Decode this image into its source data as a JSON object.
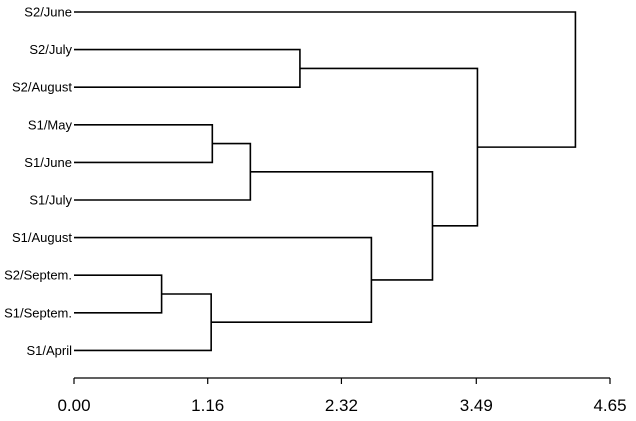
{
  "chart_data": {
    "type": "dendrogram",
    "orientation": "horizontal",
    "leaves": [
      "S2/June",
      "S2/July",
      "S2/August",
      "S1/May",
      "S1/June",
      "S1/July",
      "S1/August",
      "S2/Septem.",
      "S1/Septem.",
      "S1/April"
    ],
    "merges": [
      {
        "id": "m1",
        "children": [
          "S2/Septem.",
          "S1/Septem."
        ],
        "height": 0.76
      },
      {
        "id": "m2",
        "children": [
          "S1/May",
          "S1/June"
        ],
        "height": 1.2
      },
      {
        "id": "m3",
        "children": [
          "m1",
          "S1/April"
        ],
        "height": 1.19
      },
      {
        "id": "m4",
        "children": [
          "m2",
          "S1/July"
        ],
        "height": 1.53
      },
      {
        "id": "m5",
        "children": [
          "S2/July",
          "S2/August"
        ],
        "height": 1.96
      },
      {
        "id": "m6",
        "children": [
          "S1/August",
          "m3"
        ],
        "height": 2.58
      },
      {
        "id": "m7",
        "children": [
          "m4",
          "m6"
        ],
        "height": 3.11
      },
      {
        "id": "m8",
        "children": [
          "m5",
          "m7"
        ],
        "height": 3.5
      },
      {
        "id": "m9",
        "children": [
          "S2/June",
          "m8"
        ],
        "height": 4.35
      }
    ],
    "xticks": [
      0.0,
      1.16,
      2.32,
      3.49,
      4.65
    ],
    "xtick_labels": [
      "0.00",
      "1.16",
      "2.32",
      "3.49",
      "4.65"
    ],
    "xlim": [
      0.0,
      4.65
    ],
    "xlabel": "",
    "title": ""
  }
}
